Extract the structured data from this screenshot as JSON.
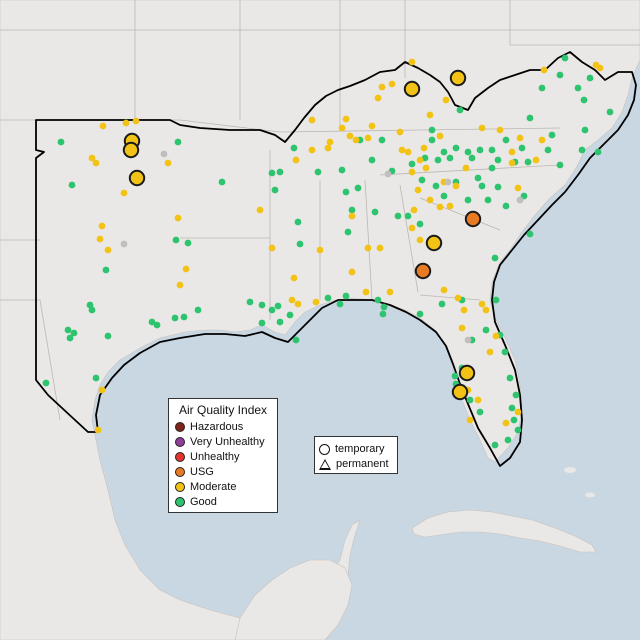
{
  "legend": {
    "title": "Air Quality Index",
    "categories": [
      {
        "label": "Hazardous",
        "color": "#7e2418"
      },
      {
        "label": "Very Unhealthy",
        "color": "#8f3f97"
      },
      {
        "label": "Unhealthy",
        "color": "#e0342c"
      },
      {
        "label": "USG",
        "color": "#e87b22"
      },
      {
        "label": "Moderate",
        "color": "#f2c316"
      },
      {
        "label": "Good",
        "color": "#2ec46f"
      }
    ]
  },
  "shape_legend": {
    "temporary": "temporary",
    "permanent": "permanent"
  },
  "colors": {
    "water": "#c9d7e3",
    "land": "#eae8e6",
    "state_border": "#bdb8b3",
    "highlight_border": "#000000",
    "no_data": "#bfbfbf"
  }
}
